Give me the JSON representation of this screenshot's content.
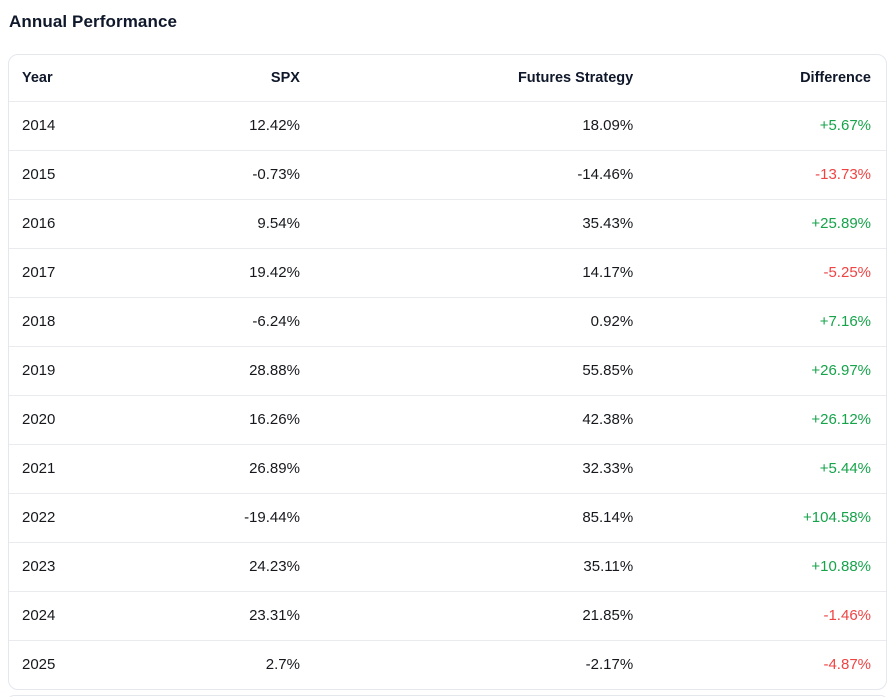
{
  "page_title": "Annual Performance",
  "colors": {
    "positive": "#16a34a",
    "negative": "#ef4444",
    "text": "#16181d",
    "header_text": "#0f172a",
    "border": "#e4e7ec",
    "row_divider": "#e9ebef"
  },
  "table": {
    "columns": [
      "Year",
      "SPX",
      "Futures Strategy",
      "Difference"
    ],
    "rows": [
      {
        "year": "2014",
        "spx": "12.42%",
        "futures_strategy": "18.09%",
        "difference": "+5.67%",
        "difference_sign": "positive"
      },
      {
        "year": "2015",
        "spx": "-0.73%",
        "futures_strategy": "-14.46%",
        "difference": "-13.73%",
        "difference_sign": "negative"
      },
      {
        "year": "2016",
        "spx": "9.54%",
        "futures_strategy": "35.43%",
        "difference": "+25.89%",
        "difference_sign": "positive"
      },
      {
        "year": "2017",
        "spx": "19.42%",
        "futures_strategy": "14.17%",
        "difference": "-5.25%",
        "difference_sign": "negative"
      },
      {
        "year": "2018",
        "spx": "-6.24%",
        "futures_strategy": "0.92%",
        "difference": "+7.16%",
        "difference_sign": "positive"
      },
      {
        "year": "2019",
        "spx": "28.88%",
        "futures_strategy": "55.85%",
        "difference": "+26.97%",
        "difference_sign": "positive"
      },
      {
        "year": "2020",
        "spx": "16.26%",
        "futures_strategy": "42.38%",
        "difference": "+26.12%",
        "difference_sign": "positive"
      },
      {
        "year": "2021",
        "spx": "26.89%",
        "futures_strategy": "32.33%",
        "difference": "+5.44%",
        "difference_sign": "positive"
      },
      {
        "year": "2022",
        "spx": "-19.44%",
        "futures_strategy": "85.14%",
        "difference": "+104.58%",
        "difference_sign": "positive"
      },
      {
        "year": "2023",
        "spx": "24.23%",
        "futures_strategy": "35.11%",
        "difference": "+10.88%",
        "difference_sign": "positive"
      },
      {
        "year": "2024",
        "spx": "23.31%",
        "futures_strategy": "21.85%",
        "difference": "-1.46%",
        "difference_sign": "negative"
      },
      {
        "year": "2025",
        "spx": "2.7%",
        "futures_strategy": "-2.17%",
        "difference": "-4.87%",
        "difference_sign": "negative"
      }
    ]
  }
}
